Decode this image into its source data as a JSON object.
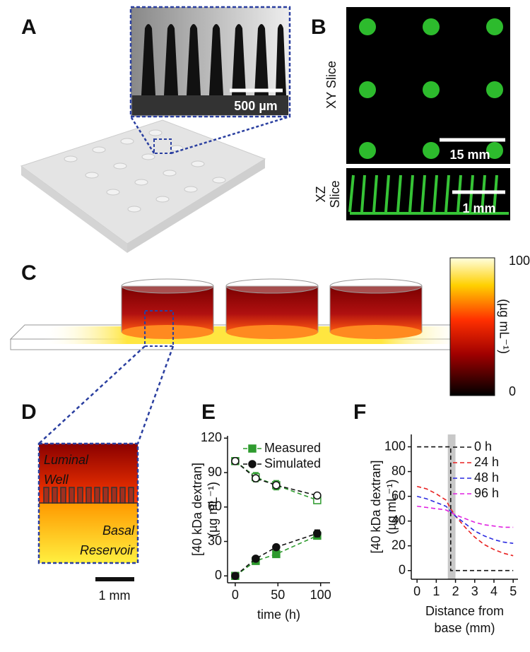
{
  "panels": {
    "A": {
      "label": "A",
      "scale_bar": "500 µm"
    },
    "B": {
      "label": "B",
      "xy_label": "XY Slice",
      "xy_scale_bar": "15 mm",
      "xz_label": [
        "XZ",
        "Slice"
      ],
      "xz_scale_bar": "1 mm"
    },
    "C": {
      "label": "C",
      "colorbar_range": [
        0,
        100
      ],
      "colorbar_unit": "(µg mL⁻¹)"
    },
    "D": {
      "label": "D",
      "top_region": [
        "Luminal",
        "Well"
      ],
      "bottom_region": [
        "Basal",
        "Reservoir"
      ],
      "scale_bar": "1 mm"
    },
    "E": {
      "label": "E"
    },
    "F": {
      "label": "F"
    }
  },
  "chart_data": [
    {
      "type": "line",
      "ylabel": [
        "[40 kDa dextran]",
        "(µg mL⁻¹)"
      ],
      "xlabel": [
        "time (h)"
      ],
      "x": [
        0,
        24,
        48,
        96
      ],
      "xlim": [
        -9,
        111
      ],
      "xticks": [
        0,
        50,
        100
      ],
      "ylim": [
        -6,
        122
      ],
      "yticks": [
        0,
        30,
        60,
        90,
        120
      ],
      "legend": "upper right",
      "series": [
        {
          "name": "Measured",
          "color": "#2e9b2e",
          "marker": "square",
          "luminal": [
            100,
            86,
            79,
            66
          ],
          "luminal_errors": [
            0,
            4,
            4,
            3
          ],
          "basal": [
            0,
            13,
            19,
            35
          ],
          "basal_errors": [
            0,
            2,
            3,
            3
          ]
        },
        {
          "name": "Simulated",
          "color": "#111111",
          "marker": "circle",
          "luminal": [
            100,
            85,
            79,
            70
          ],
          "luminal_errors": [
            0,
            2,
            2,
            2
          ],
          "basal": [
            0,
            15,
            25,
            37
          ],
          "basal_errors": [
            1,
            2,
            2,
            3
          ]
        }
      ]
    },
    {
      "type": "line",
      "ylabel": [
        "[40 kDa dextran]",
        "(µg mL⁻¹)"
      ],
      "xlabel": [
        "Distance from",
        "base (mm)"
      ],
      "x": [
        0,
        0.5,
        1,
        1.5,
        1.75,
        1.75,
        2,
        2.5,
        3,
        3.5,
        4,
        4.5,
        5
      ],
      "xlim": [
        -0.3,
        5.25
      ],
      "xticks": [
        0,
        1,
        2,
        3,
        4,
        5
      ],
      "ylim": [
        -7,
        110
      ],
      "yticks": [
        0,
        20,
        40,
        60,
        80,
        100
      ],
      "shaded_region": [
        1.6,
        2.0
      ],
      "legend": "upper right",
      "series": [
        {
          "name": "0 h",
          "color": "#111111",
          "values": [
            100,
            100,
            100,
            100,
            100,
            0,
            0,
            0,
            0,
            0,
            0,
            0,
            0
          ]
        },
        {
          "name": "24 h",
          "color": "#e82020",
          "values": [
            68,
            66,
            62,
            57,
            50,
            50,
            44,
            35,
            27,
            21,
            17,
            14,
            12
          ]
        },
        {
          "name": "48 h",
          "color": "#2a2ae0",
          "values": [
            60,
            58,
            55,
            52,
            48,
            48,
            44,
            38,
            32,
            28,
            25,
            23,
            22
          ]
        },
        {
          "name": "96 h",
          "color": "#e020e0",
          "values": [
            52,
            51,
            50,
            49,
            47,
            47,
            45,
            42,
            39,
            37,
            36,
            35,
            35
          ]
        }
      ]
    }
  ]
}
